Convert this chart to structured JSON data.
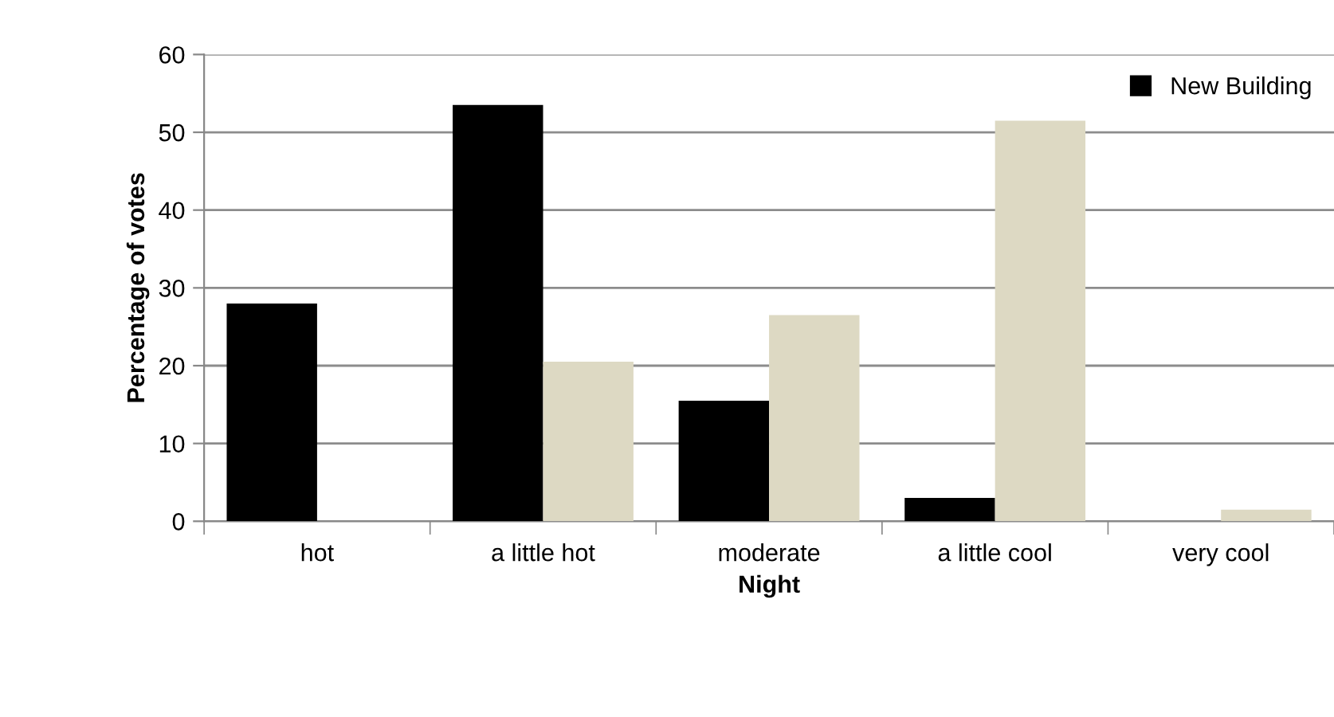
{
  "chart_data": {
    "type": "bar",
    "xlabel": "Night",
    "ylabel": "Percentage of votes",
    "categories": [
      "hot",
      "a little hot",
      "moderate",
      "a little cool",
      "very cool"
    ],
    "series": [
      {
        "name": "New Building",
        "color": "#000000",
        "values": [
          28,
          53.5,
          15.5,
          3,
          0
        ]
      },
      {
        "color": "#ddd9c3",
        "values": [
          0,
          20.5,
          26.5,
          51.5,
          1.5
        ]
      }
    ],
    "ylim": [
      0,
      60
    ],
    "yticks": [
      0,
      10,
      20,
      30,
      40,
      50,
      60
    ],
    "grid": "y",
    "legend": "top right"
  }
}
